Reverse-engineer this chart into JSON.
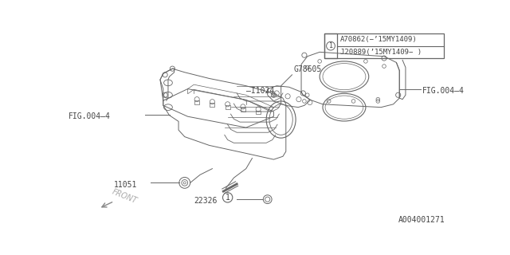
{
  "bg_color": "#ffffff",
  "line_color": "#666666",
  "labels": {
    "part_a": "A70862(−’15MY1409)",
    "part_b": "J20889(’15MY1409− )",
    "g78605": "G78605",
    "i1024": "–I1024",
    "fig004_4_left": "FIG.004–4",
    "fig004_4_right": "FIG.004–4",
    "i1051": "11051",
    "n22326": "22326",
    "front": "FRONT",
    "part_num_bottom": "A004001271"
  }
}
